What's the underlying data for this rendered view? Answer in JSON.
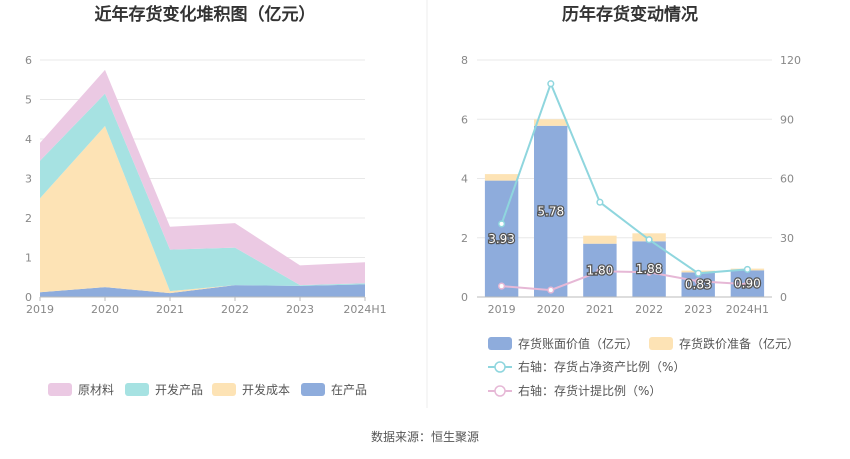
{
  "source": "数据来源：恒生聚源",
  "chart_data": [
    {
      "type": "area",
      "stacked": true,
      "title": "近年存货变化堆积图（亿元）",
      "categories": [
        "2019",
        "2020",
        "2021",
        "2022",
        "2023",
        "2024H1"
      ],
      "ylim": [
        0,
        6
      ],
      "yticks": [
        0,
        1,
        2,
        3,
        4,
        5,
        6
      ],
      "grid": true,
      "legend_position": "bottom",
      "series": [
        {
          "name": "在产品",
          "color": "#8eacdc",
          "values": [
            0.12,
            0.25,
            0.1,
            0.3,
            0.28,
            0.32
          ]
        },
        {
          "name": "开发成本",
          "color": "#fde3b5",
          "values": [
            2.38,
            4.08,
            0.05,
            0.0,
            0.0,
            0.0
          ]
        },
        {
          "name": "开发产品",
          "color": "#a6e2e2",
          "values": [
            0.95,
            0.82,
            1.05,
            0.95,
            0.02,
            0.03
          ]
        },
        {
          "name": "原材料",
          "color": "#ebc9e3",
          "values": [
            0.45,
            0.6,
            0.58,
            0.62,
            0.5,
            0.53
          ]
        }
      ],
      "legend_order": [
        "原材料",
        "开发产品",
        "开发成本",
        "在产品"
      ]
    },
    {
      "type": "bar",
      "stacked": true,
      "title": "历年存货变动情况",
      "categories": [
        "2019",
        "2020",
        "2021",
        "2022",
        "2023",
        "2024H1"
      ],
      "ylim": [
        0,
        8
      ],
      "yticks": [
        0,
        2,
        4,
        6,
        8
      ],
      "y2lim": [
        0,
        120
      ],
      "y2ticks": [
        0,
        30,
        60,
        90,
        120
      ],
      "grid": true,
      "legend_position": "bottom",
      "series": [
        {
          "name": "存货账面价值（亿元）",
          "color": "#8eacdc",
          "axis": "left",
          "values": [
            3.93,
            5.78,
            1.8,
            1.88,
            0.83,
            0.9
          ],
          "labels": [
            "3.93",
            "5.78",
            "1.80",
            "1.88",
            "0.83",
            "0.90"
          ]
        },
        {
          "name": "存货跌价准备（亿元）",
          "color": "#fde3b5",
          "axis": "left",
          "values": [
            0.22,
            0.22,
            0.27,
            0.27,
            0.06,
            0.06
          ]
        },
        {
          "name": "右轴：存货占净资产比例（%）",
          "color": "#8fd6de",
          "axis": "right",
          "type": "line",
          "values": [
            37,
            108,
            48,
            29,
            12,
            14
          ]
        },
        {
          "name": "右轴：存货计提比例（%）",
          "color": "#e6b8d6",
          "axis": "right",
          "type": "line",
          "values": [
            5.5,
            3.5,
            13,
            12.5,
            8,
            6.5
          ]
        }
      ]
    }
  ]
}
